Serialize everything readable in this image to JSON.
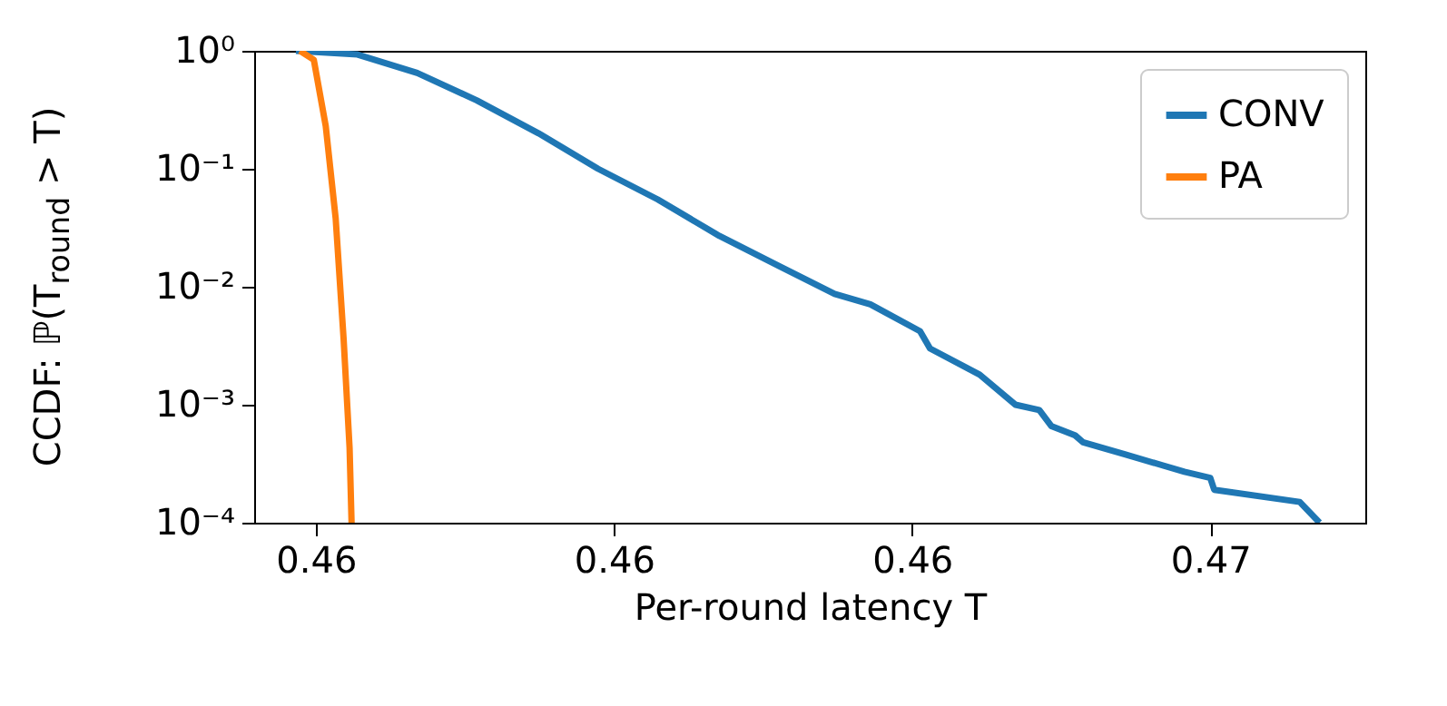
{
  "chart_data": {
    "type": "line",
    "xlabel": "Per-round latency T",
    "ylabel": "CCDF: ℙ(T$_{round}$ > T)",
    "log": "y",
    "grid": false,
    "legend": "top right",
    "line_style": "solid",
    "marker": "none",
    "xlim": [
      0.46019,
      0.46578
    ],
    "xticks": [
      {
        "value": 0.4605,
        "label": "0.46"
      },
      {
        "value": 0.462,
        "label": "0.46"
      },
      {
        "value": 0.4635,
        "label": "0.46"
      },
      {
        "value": 0.465,
        "label": "0.47"
      }
    ],
    "ylim": [
      0.0001,
      1
    ],
    "yticks": [
      {
        "value": 0.0001,
        "label": "10⁻⁴"
      },
      {
        "value": 0.001,
        "label": "10⁻³"
      },
      {
        "value": 0.01,
        "label": "10⁻²"
      },
      {
        "value": 0.1,
        "label": "10⁻¹"
      },
      {
        "value": 1,
        "label": "10⁰"
      }
    ],
    "series": [
      {
        "name": "CONV",
        "color": "#1f77b4",
        "x": [
          0.4604,
          0.46071,
          0.46101,
          0.46131,
          0.46162,
          0.46192,
          0.46222,
          0.46253,
          0.46283,
          0.46311,
          0.46329,
          0.46354,
          0.46359,
          0.46384,
          0.46402,
          0.46414,
          0.4642,
          0.46432,
          0.46436,
          0.46457,
          0.46487,
          0.465,
          0.46502,
          0.46545,
          0.46555
        ],
        "values": [
          1,
          0.93,
          0.65,
          0.38,
          0.2,
          0.1,
          0.055,
          0.027,
          0.015,
          0.0087,
          0.0071,
          0.0042,
          0.003,
          0.0018,
          0.001,
          0.0009,
          0.00066,
          0.00055,
          0.00048,
          0.00038,
          0.00027,
          0.00024,
          0.00019,
          0.00015,
          0.0001
        ]
      },
      {
        "name": "PA",
        "color": "#ff7f0e",
        "x": [
          0.46042,
          0.46049,
          0.46055,
          0.4606,
          0.46064,
          0.46067,
          0.46068
        ],
        "values": [
          1,
          0.84,
          0.23,
          0.038,
          0.0036,
          0.00043,
          0.0001
        ]
      }
    ]
  }
}
